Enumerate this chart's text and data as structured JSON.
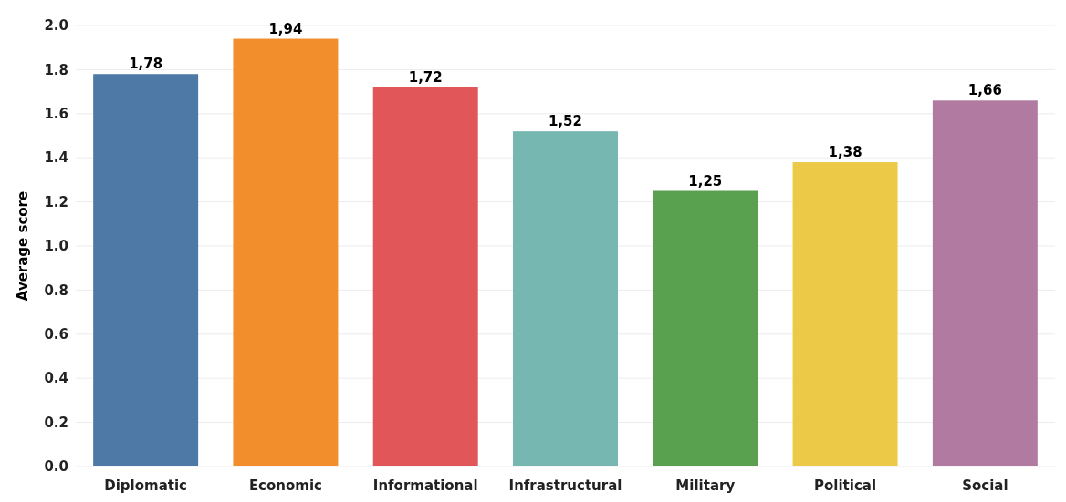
{
  "chart_data": {
    "type": "bar",
    "ylabel": "Average score",
    "categories": [
      "Diplomatic",
      "Economic",
      "Informational",
      "Infrastructural",
      "Military",
      "Political",
      "Social"
    ],
    "values": [
      1.78,
      1.94,
      1.72,
      1.52,
      1.25,
      1.38,
      1.66
    ],
    "value_labels": [
      "1,78",
      "1,94",
      "1,72",
      "1,52",
      "1,25",
      "1,38",
      "1,66"
    ],
    "colors": [
      "#4e79a7",
      "#f28e2b",
      "#e15759",
      "#76b7b2",
      "#59a14f",
      "#edc948",
      "#b07aa1"
    ],
    "ylim": [
      0,
      2
    ],
    "yticks": [
      {
        "value": 0,
        "label": "0.0"
      },
      {
        "value": 0.2,
        "label": "0.2"
      },
      {
        "value": 0.4,
        "label": "0.4"
      },
      {
        "value": 0.6,
        "label": "0.6"
      },
      {
        "value": 0.8,
        "label": "0.8"
      },
      {
        "value": 1,
        "label": "1.0"
      },
      {
        "value": 1.2,
        "label": "1.2"
      },
      {
        "value": 1.4,
        "label": "1.4"
      },
      {
        "value": 1.6,
        "label": "1.6"
      },
      {
        "value": 1.8,
        "label": "1.8"
      },
      {
        "value": 2,
        "label": "2.0"
      }
    ],
    "grid": "y"
  }
}
